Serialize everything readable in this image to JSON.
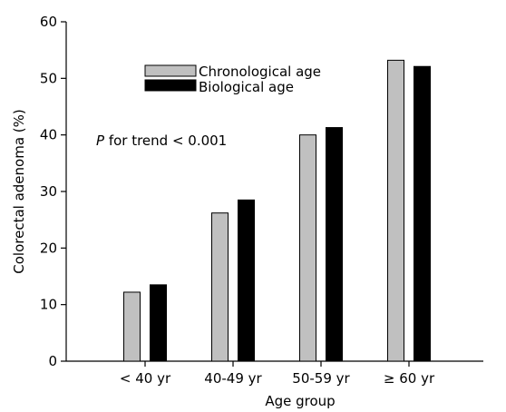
{
  "chart_data": {
    "type": "bar",
    "categories": [
      "< 40 yr",
      "40-49 yr",
      "50-59 yr",
      "≥ 60 yr"
    ],
    "series": [
      {
        "name": "Chronological age",
        "values": [
          12.2,
          26.2,
          40.0,
          53.2
        ],
        "color": "#c0c0c0"
      },
      {
        "name": "Biological age",
        "values": [
          13.5,
          28.5,
          41.3,
          52.1
        ],
        "color": "#000000"
      }
    ],
    "xlabel": "Age group",
    "ylabel": "Colorectal adenoma (%)",
    "ylim": [
      0,
      60
    ],
    "yticks": [
      0,
      10,
      20,
      30,
      40,
      50,
      60
    ],
    "grid": false,
    "legend_position": "top-left",
    "annotation": {
      "italic": "P",
      "text": " for trend < 0.001"
    }
  }
}
